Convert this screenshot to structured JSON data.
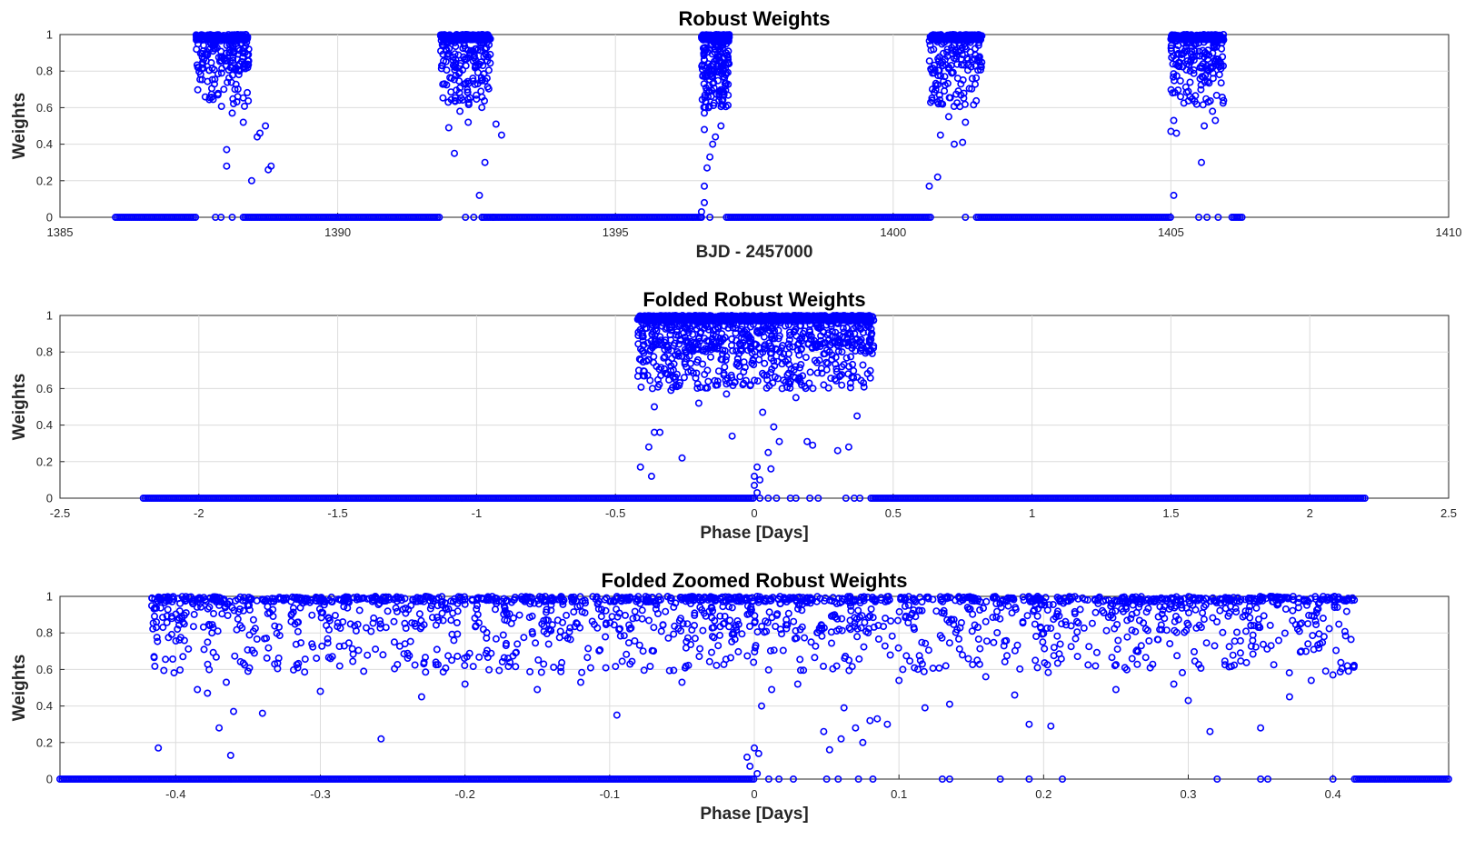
{
  "chart_data": [
    {
      "type": "scatter",
      "title": "Robust Weights",
      "xlabel": "BJD - 2457000",
      "ylabel": "Weights",
      "xlim": [
        1385,
        1410
      ],
      "ylim": [
        0,
        1
      ],
      "xticks": [
        1385,
        1390,
        1395,
        1400,
        1405,
        1410
      ],
      "xtick_labels": [
        "1385",
        "1390",
        "1395",
        "1400",
        "1405",
        "1410"
      ],
      "yticks": [
        0,
        0.2,
        0.4,
        0.6,
        0.8,
        1
      ],
      "ytick_labels": [
        "0",
        "0.2",
        "0.4",
        "0.6",
        "0.8",
        "1"
      ],
      "grid": true,
      "marker_color": "#0000ff",
      "zero_runs": [
        [
          1386.0,
          1387.45
        ],
        [
          1388.3,
          1391.85
        ],
        [
          1392.6,
          1396.55
        ],
        [
          1397.0,
          1400.7
        ],
        [
          1401.5,
          1405.0
        ],
        [
          1406.1,
          1406.3
        ]
      ],
      "cluster_points": [
        {
          "x": 1388.0,
          "y": 0.37
        },
        {
          "x": 1388.0,
          "y": 0.28
        },
        {
          "x": 1388.1,
          "y": 0.57
        },
        {
          "x": 1388.3,
          "y": 0.52
        },
        {
          "x": 1388.45,
          "y": 0.2
        },
        {
          "x": 1388.55,
          "y": 0.44
        },
        {
          "x": 1388.6,
          "y": 0.46
        },
        {
          "x": 1388.75,
          "y": 0.26
        },
        {
          "x": 1388.8,
          "y": 0.28
        },
        {
          "x": 1388.7,
          "y": 0.5
        },
        {
          "x": 1387.95,
          "y": 0.7
        },
        {
          "x": 1388.2,
          "y": 0.66
        },
        {
          "x": 1392.1,
          "y": 0.35
        },
        {
          "x": 1392.0,
          "y": 0.49
        },
        {
          "x": 1392.35,
          "y": 0.52
        },
        {
          "x": 1392.55,
          "y": 0.12
        },
        {
          "x": 1392.65,
          "y": 0.3
        },
        {
          "x": 1392.85,
          "y": 0.51
        },
        {
          "x": 1392.95,
          "y": 0.45
        },
        {
          "x": 1392.2,
          "y": 0.58
        },
        {
          "x": 1396.55,
          "y": 0.03
        },
        {
          "x": 1396.6,
          "y": 0.08
        },
        {
          "x": 1396.6,
          "y": 0.17
        },
        {
          "x": 1396.65,
          "y": 0.27
        },
        {
          "x": 1396.7,
          "y": 0.33
        },
        {
          "x": 1396.75,
          "y": 0.4
        },
        {
          "x": 1396.8,
          "y": 0.44
        },
        {
          "x": 1396.6,
          "y": 0.48
        },
        {
          "x": 1396.9,
          "y": 0.5
        },
        {
          "x": 1396.6,
          "y": 0.57
        },
        {
          "x": 1400.65,
          "y": 0.17
        },
        {
          "x": 1400.8,
          "y": 0.22
        },
        {
          "x": 1400.85,
          "y": 0.45
        },
        {
          "x": 1401.1,
          "y": 0.4
        },
        {
          "x": 1401.25,
          "y": 0.41
        },
        {
          "x": 1401.0,
          "y": 0.55
        },
        {
          "x": 1401.3,
          "y": 0.52
        },
        {
          "x": 1400.7,
          "y": 0.64
        },
        {
          "x": 1405.05,
          "y": 0.12
        },
        {
          "x": 1405.0,
          "y": 0.47
        },
        {
          "x": 1405.1,
          "y": 0.46
        },
        {
          "x": 1405.05,
          "y": 0.53
        },
        {
          "x": 1405.6,
          "y": 0.5
        },
        {
          "x": 1405.55,
          "y": 0.3
        },
        {
          "x": 1405.8,
          "y": 0.53
        },
        {
          "x": 1405.75,
          "y": 0.58
        }
      ],
      "scatter_zero_points": [
        1387.8,
        1387.9,
        1388.1,
        1392.3,
        1392.45,
        1392.6,
        1392.8,
        1396.55,
        1396.7,
        1401.3,
        1405.5,
        1405.65,
        1405.85
      ]
    },
    {
      "type": "scatter",
      "title": "Folded Robust Weights",
      "xlabel": "Phase [Days]",
      "ylabel": "Weights",
      "xlim": [
        -2.5,
        2.5
      ],
      "ylim": [
        0,
        1
      ],
      "xticks": [
        -2.5,
        -2,
        -1.5,
        -1,
        -0.5,
        0,
        0.5,
        1,
        1.5,
        2,
        2.5
      ],
      "xtick_labels": [
        "-2.5",
        "-2",
        "-1.5",
        "-1",
        "-0.5",
        "0",
        "0.5",
        "1",
        "1.5",
        "2",
        "2.5"
      ],
      "yticks": [
        0,
        0.2,
        0.4,
        0.6,
        0.8,
        1
      ],
      "ytick_labels": [
        "0",
        "0.2",
        "0.4",
        "0.6",
        "0.8",
        "1"
      ],
      "grid": true,
      "marker_color": "#0000ff",
      "zero_runs": [
        [
          -2.2,
          0.0
        ],
        [
          0.42,
          2.2
        ]
      ],
      "cluster_points": [
        {
          "x": -0.41,
          "y": 0.17
        },
        {
          "x": -0.38,
          "y": 0.28
        },
        {
          "x": -0.37,
          "y": 0.12
        },
        {
          "x": -0.36,
          "y": 0.36
        },
        {
          "x": -0.34,
          "y": 0.36
        },
        {
          "x": -0.26,
          "y": 0.22
        },
        {
          "x": -0.08,
          "y": 0.34
        },
        {
          "x": 0.02,
          "y": 0.1
        },
        {
          "x": 0.01,
          "y": 0.17
        },
        {
          "x": 0.0,
          "y": 0.12
        },
        {
          "x": 0.0,
          "y": 0.07
        },
        {
          "x": 0.01,
          "y": 0.03
        },
        {
          "x": 0.05,
          "y": 0.25
        },
        {
          "x": 0.06,
          "y": 0.16
        },
        {
          "x": 0.07,
          "y": 0.39
        },
        {
          "x": 0.09,
          "y": 0.31
        },
        {
          "x": 0.19,
          "y": 0.31
        },
        {
          "x": 0.21,
          "y": 0.29
        },
        {
          "x": 0.3,
          "y": 0.26
        },
        {
          "x": 0.34,
          "y": 0.28
        },
        {
          "x": -0.4,
          "y": 0.67
        },
        {
          "x": -0.3,
          "y": 0.59
        },
        {
          "x": -0.2,
          "y": 0.52
        },
        {
          "x": -0.1,
          "y": 0.57
        },
        {
          "x": 0.03,
          "y": 0.47
        },
        {
          "x": 0.1,
          "y": 0.6
        },
        {
          "x": 0.15,
          "y": 0.55
        },
        {
          "x": 0.25,
          "y": 0.62
        },
        {
          "x": 0.37,
          "y": 0.45
        },
        {
          "x": -0.36,
          "y": 0.5
        }
      ],
      "scatter_zero_points": [
        0.02,
        0.05,
        0.08,
        0.13,
        0.15,
        0.2,
        0.23,
        0.33,
        0.36,
        0.38
      ]
    },
    {
      "type": "scatter",
      "title": "Folded Zoomed Robust Weights",
      "xlabel": "Phase [Days]",
      "ylabel": "Weights",
      "xlim": [
        -0.48,
        0.48
      ],
      "ylim": [
        0,
        1
      ],
      "xticks": [
        -0.4,
        -0.3,
        -0.2,
        -0.1,
        0,
        0.1,
        0.2,
        0.3,
        0.4
      ],
      "xtick_labels": [
        "-0.4",
        "-0.3",
        "-0.2",
        "-0.1",
        "0",
        "0.1",
        "0.2",
        "0.3",
        "0.4"
      ],
      "yticks": [
        0,
        0.2,
        0.4,
        0.6,
        0.8,
        1
      ],
      "ytick_labels": [
        "0",
        "0.2",
        "0.4",
        "0.6",
        "0.8",
        "1"
      ],
      "grid": true,
      "marker_color": "#0000ff",
      "zero_runs": [
        [
          -0.48,
          0.0
        ],
        [
          0.415,
          0.48
        ]
      ],
      "cluster_points": [
        {
          "x": -0.412,
          "y": 0.17
        },
        {
          "x": -0.395,
          "y": 0.67
        },
        {
          "x": -0.385,
          "y": 0.49
        },
        {
          "x": -0.378,
          "y": 0.47
        },
        {
          "x": -0.37,
          "y": 0.28
        },
        {
          "x": -0.365,
          "y": 0.53
        },
        {
          "x": -0.362,
          "y": 0.13
        },
        {
          "x": -0.36,
          "y": 0.37
        },
        {
          "x": -0.34,
          "y": 0.36
        },
        {
          "x": -0.258,
          "y": 0.22
        },
        {
          "x": -0.23,
          "y": 0.45
        },
        {
          "x": -0.095,
          "y": 0.35
        },
        {
          "x": -0.005,
          "y": 0.12
        },
        {
          "x": 0.0,
          "y": 0.17
        },
        {
          "x": 0.003,
          "y": 0.14
        },
        {
          "x": -0.003,
          "y": 0.07
        },
        {
          "x": 0.002,
          "y": 0.03
        },
        {
          "x": 0.005,
          "y": 0.4
        },
        {
          "x": 0.012,
          "y": 0.49
        },
        {
          "x": 0.048,
          "y": 0.26
        },
        {
          "x": 0.052,
          "y": 0.16
        },
        {
          "x": 0.06,
          "y": 0.22
        },
        {
          "x": 0.062,
          "y": 0.39
        },
        {
          "x": 0.07,
          "y": 0.28
        },
        {
          "x": 0.075,
          "y": 0.2
        },
        {
          "x": 0.08,
          "y": 0.32
        },
        {
          "x": 0.085,
          "y": 0.33
        },
        {
          "x": 0.092,
          "y": 0.3
        },
        {
          "x": 0.118,
          "y": 0.39
        },
        {
          "x": 0.135,
          "y": 0.41
        },
        {
          "x": 0.18,
          "y": 0.46
        },
        {
          "x": 0.19,
          "y": 0.3
        },
        {
          "x": 0.205,
          "y": 0.29
        },
        {
          "x": 0.3,
          "y": 0.43
        },
        {
          "x": 0.315,
          "y": 0.26
        },
        {
          "x": 0.35,
          "y": 0.28
        },
        {
          "x": 0.37,
          "y": 0.45
        },
        {
          "x": 0.385,
          "y": 0.54
        },
        {
          "x": -0.415,
          "y": 0.67
        },
        {
          "x": -0.35,
          "y": 0.59
        },
        {
          "x": -0.3,
          "y": 0.48
        },
        {
          "x": -0.27,
          "y": 0.59
        },
        {
          "x": -0.2,
          "y": 0.52
        },
        {
          "x": -0.15,
          "y": 0.49
        },
        {
          "x": -0.12,
          "y": 0.53
        },
        {
          "x": -0.05,
          "y": 0.53
        },
        {
          "x": 0.03,
          "y": 0.52
        },
        {
          "x": 0.1,
          "y": 0.54
        },
        {
          "x": 0.16,
          "y": 0.56
        },
        {
          "x": 0.25,
          "y": 0.49
        },
        {
          "x": 0.29,
          "y": 0.52
        },
        {
          "x": 0.4,
          "y": 0.57
        },
        {
          "x": 0.41,
          "y": 0.62
        }
      ],
      "scatter_zero_points": [
        0.01,
        0.017,
        0.027,
        0.05,
        0.058,
        0.072,
        0.082,
        0.13,
        0.135,
        0.17,
        0.19,
        0.213,
        0.32,
        0.35,
        0.355,
        0.4
      ]
    }
  ]
}
